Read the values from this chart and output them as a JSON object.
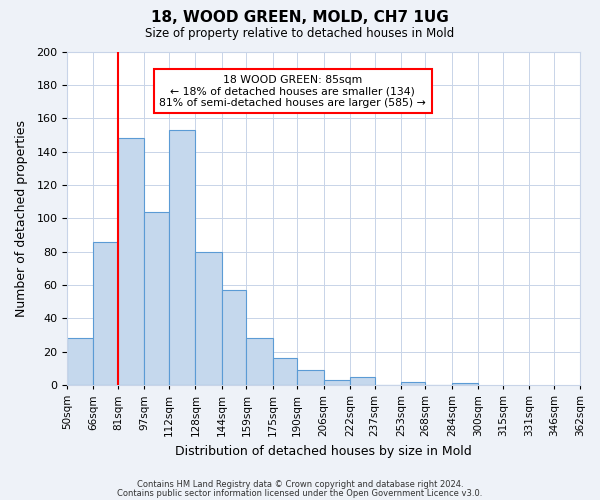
{
  "title": "18, WOOD GREEN, MOLD, CH7 1UG",
  "subtitle": "Size of property relative to detached houses in Mold",
  "xlabel": "Distribution of detached houses by size in Mold",
  "ylabel": "Number of detached properties",
  "bar_heights": [
    28,
    86,
    148,
    104,
    153,
    80,
    57,
    28,
    16,
    9,
    3,
    5,
    0,
    2,
    0,
    1
  ],
  "bin_edges": [
    50,
    66,
    81,
    97,
    112,
    128,
    144,
    159,
    175,
    190,
    206,
    222,
    237,
    253,
    268,
    284,
    300,
    315,
    331,
    346,
    362
  ],
  "bin_labels": [
    "50sqm",
    "66sqm",
    "81sqm",
    "97sqm",
    "112sqm",
    "128sqm",
    "144sqm",
    "159sqm",
    "175sqm",
    "190sqm",
    "206sqm",
    "222sqm",
    "237sqm",
    "253sqm",
    "268sqm",
    "284sqm",
    "300sqm",
    "315sqm",
    "331sqm",
    "346sqm",
    "362sqm"
  ],
  "bar_color": "#c5d8ed",
  "bar_edge_color": "#5b9bd5",
  "red_line_x": 81,
  "ylim": [
    0,
    200
  ],
  "yticks": [
    0,
    20,
    40,
    60,
    80,
    100,
    120,
    140,
    160,
    180,
    200
  ],
  "annotation_title": "18 WOOD GREEN: 85sqm",
  "annotation_line1": "← 18% of detached houses are smaller (134)",
  "annotation_line2": "81% of semi-detached houses are larger (585) →",
  "footer1": "Contains HM Land Registry data © Crown copyright and database right 2024.",
  "footer2": "Contains public sector information licensed under the Open Government Licence v3.0.",
  "background_color": "#eef2f8",
  "plot_background": "#ffffff",
  "grid_color": "#c8d4e8"
}
